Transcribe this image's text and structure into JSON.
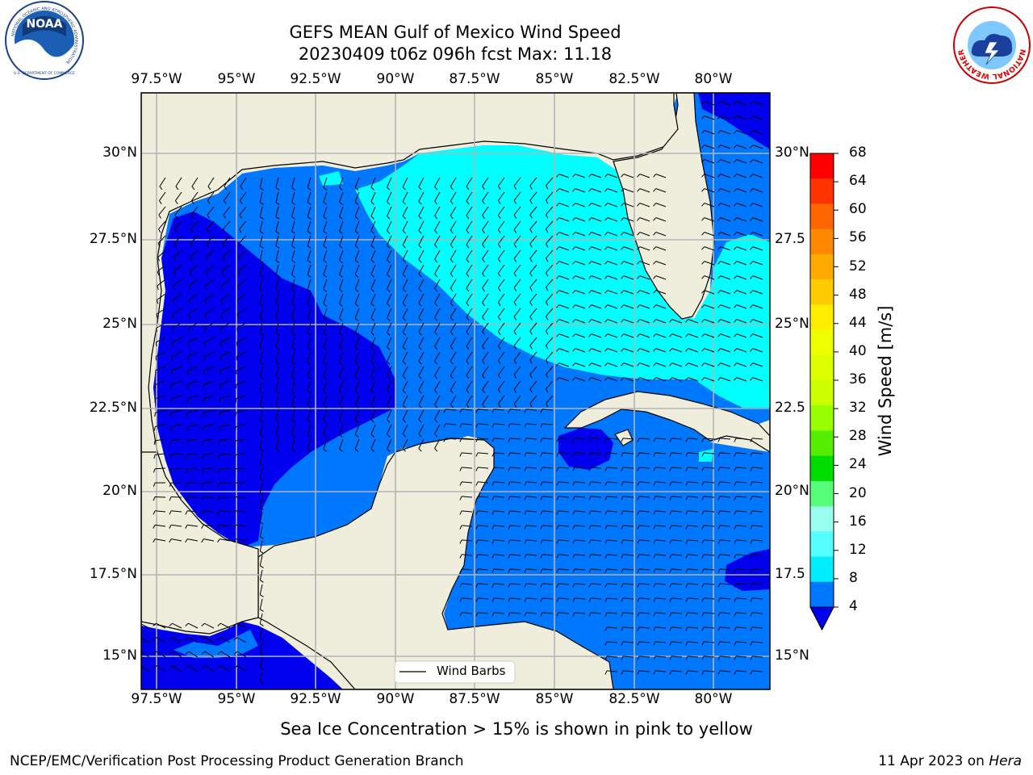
{
  "header": {
    "title_line1": "GEFS MEAN Gulf of Mexico Wind Speed",
    "title_line2": "20230409 t06z 096h fcst   Max: 11.18"
  },
  "logos": {
    "noaa": {
      "abbr": "NOAA",
      "ring_text": "NATIONAL OCEANIC AND ATMOSPHERIC ADMINISTRATION",
      "bottom_text": "U.S. DEPARTMENT OF COMMERCE"
    },
    "nws": {
      "ring_text": "NATIONAL WEATHER SERVICE"
    }
  },
  "map": {
    "lon_labels": [
      "97.5°W",
      "95°W",
      "92.5°W",
      "90°W",
      "87.5°W",
      "85°W",
      "82.5°W",
      "80°W"
    ],
    "lat_labels_left": [
      "30°N",
      "27.5°N",
      "25°N",
      "22.5°N",
      "20°N",
      "17.5°N",
      "15°N"
    ],
    "lat_labels_right": [
      "30°N",
      "27.5",
      "25°N",
      "22.5",
      "20°N",
      "17.5",
      "15°N"
    ],
    "legend_label": "Wind Barbs"
  },
  "colorbar": {
    "label": "Wind Speed [m/s]",
    "ticks": [
      "68",
      "64",
      "60",
      "56",
      "52",
      "48",
      "44",
      "40",
      "36",
      "32",
      "28",
      "24",
      "20",
      "16",
      "12",
      "8",
      "4"
    ],
    "colors": [
      "#ff0000",
      "#ff3300",
      "#ff6600",
      "#ff8800",
      "#ffaa00",
      "#ffcc00",
      "#ffee00",
      "#eeff00",
      "#ddff00",
      "#ccff00",
      "#99ff00",
      "#55ee00",
      "#00dd00",
      "#55ff77",
      "#99ffee",
      "#55ffff",
      "#00eeff",
      "#0077ff"
    ],
    "under_color": "#0000ee"
  },
  "footer": {
    "note": "Sea Ice Concentration > 15% is shown in pink to yellow",
    "left": "NCEP/EMC/Verification Post Processing Product Generation Branch",
    "right_date": "11 Apr 2023 on ",
    "right_host": "Hera"
  },
  "colors": {
    "land": "#efeedd",
    "speed_4_8": "#0077ff",
    "speed_below_4": "#0000ee",
    "speed_8_12": "#00ffff",
    "grid": "#b4b4b4"
  }
}
